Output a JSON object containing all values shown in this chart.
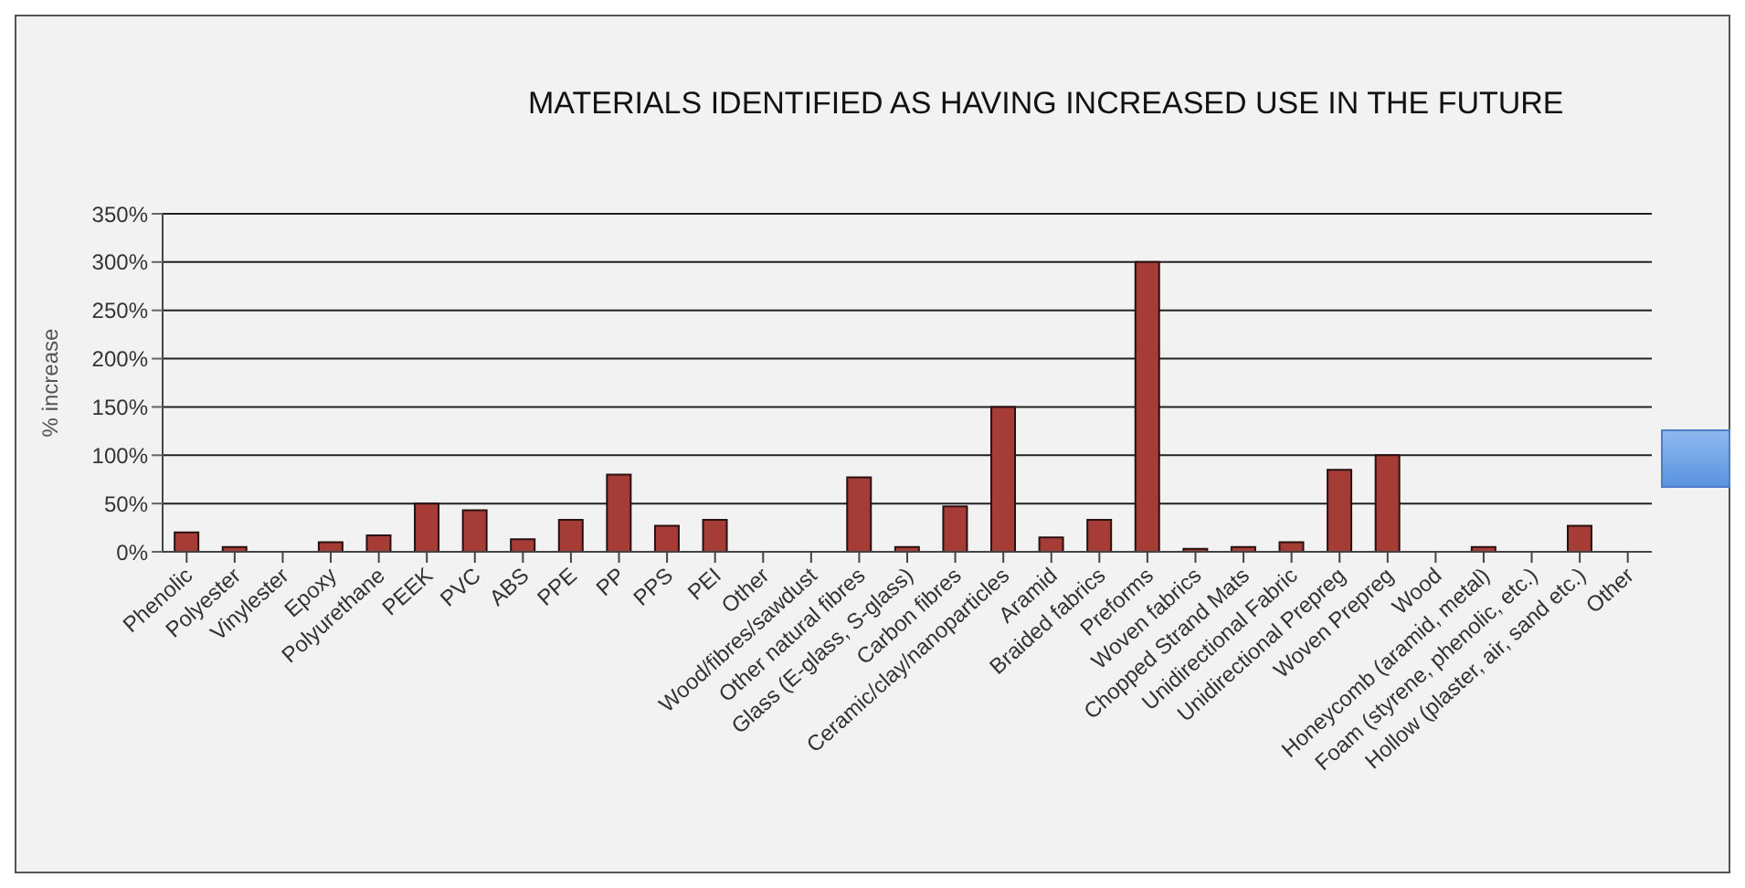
{
  "chart_data": {
    "type": "bar",
    "title": "MATERIALS IDENTIFIED AS HAVING INCREASED USE IN THE FUTURE",
    "ylabel": "% increase",
    "categories": [
      "Phenolic",
      "Polyester",
      "Vinylester",
      "Epoxy",
      "Polyurethane",
      "PEEK",
      "PVC",
      "ABS",
      "PPE",
      "PP",
      "PPS",
      "PEI",
      "Other",
      "Wood/fibres/sawdust",
      "Other natural fibres",
      "Glass (E-glass, S-glass)",
      "Carbon fibres",
      "Ceramic/clay/nanoparticles",
      "Aramid",
      "Braided fabrics",
      "Preforms",
      "Woven fabrics",
      "Chopped Strand Mats",
      "Unidirectional Fabric",
      "Unidirectional Prepreg",
      "Woven Prepreg",
      "Wood",
      "Honeycomb (aramid, metal)",
      "Foam (styrene, phenolic, etc.)",
      "Hollow (plaster, air, sand etc.)",
      "Other"
    ],
    "values": [
      20,
      5,
      0,
      10,
      17,
      50,
      43,
      13,
      33,
      80,
      27,
      33,
      0,
      0,
      77,
      5,
      47,
      150,
      15,
      33,
      300,
      3,
      5,
      10,
      85,
      100,
      0,
      5,
      0,
      27,
      0
    ],
    "color": "#a63c36",
    "ylim": [
      0,
      350
    ],
    "yticks": [
      {
        "value": 0,
        "label": "0%"
      },
      {
        "value": 50,
        "label": "50%"
      },
      {
        "value": 100,
        "label": "100%"
      },
      {
        "value": 150,
        "label": "150%"
      },
      {
        "value": 200,
        "label": "200%"
      },
      {
        "value": 250,
        "label": "250%"
      },
      {
        "value": 300,
        "label": "300%"
      },
      {
        "value": 350,
        "label": "350%"
      }
    ],
    "grid": "y"
  }
}
